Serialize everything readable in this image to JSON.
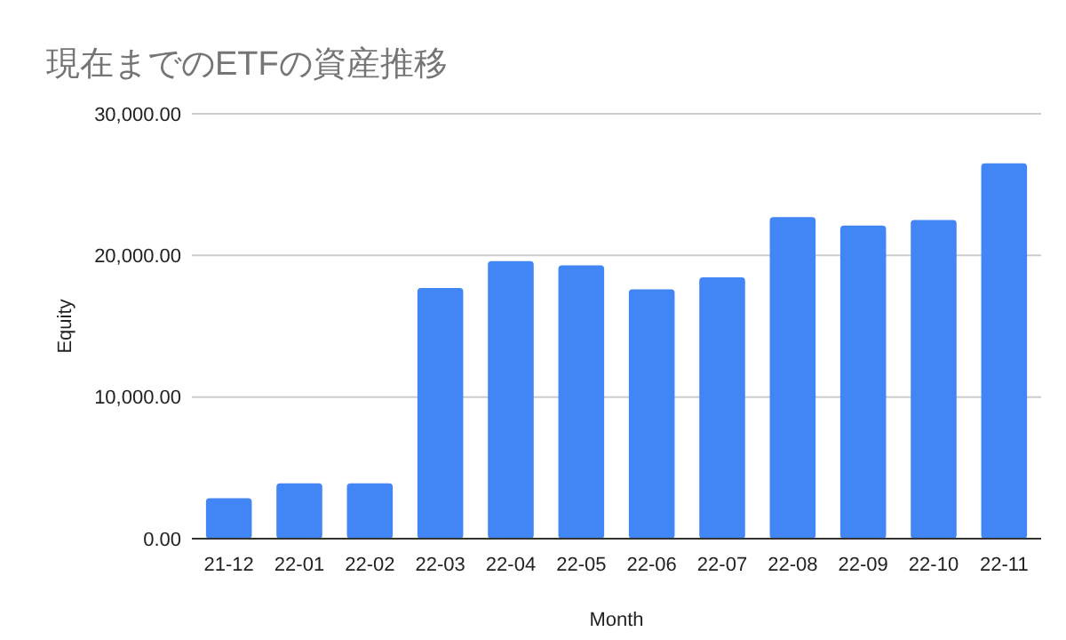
{
  "chart_data": {
    "type": "bar",
    "title": "現在までのETFの資産推移",
    "xlabel": "Month",
    "ylabel": "Equity",
    "categories": [
      "21-12",
      "22-01",
      "22-02",
      "22-03",
      "22-04",
      "22-05",
      "22-06",
      "22-07",
      "22-08",
      "22-09",
      "22-10",
      "22-11"
    ],
    "values": [
      2850,
      3900,
      3900,
      17700,
      19600,
      19300,
      17600,
      18450,
      22700,
      22100,
      22500,
      26500
    ],
    "color": "#4285f4",
    "ylim": [
      0,
      30000
    ],
    "yticks": [
      {
        "value": 0,
        "label": "0.00"
      },
      {
        "value": 10000,
        "label": "10,000.00"
      },
      {
        "value": 20000,
        "label": "20,000.00"
      },
      {
        "value": 30000,
        "label": "30,000.00"
      }
    ],
    "grid": "y"
  }
}
